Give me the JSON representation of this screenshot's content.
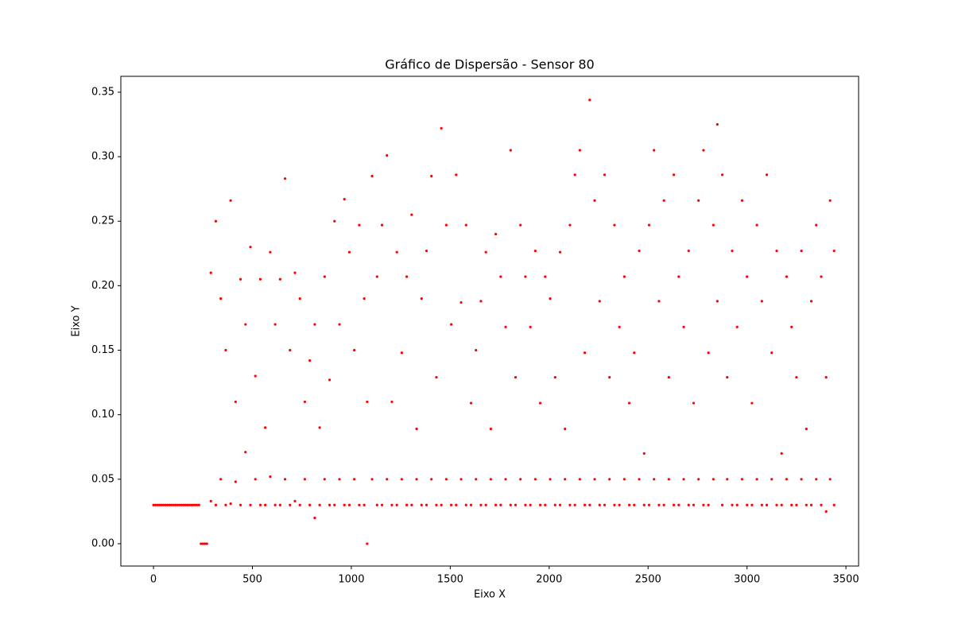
{
  "chart_data": {
    "type": "scatter",
    "title": "Gráfico de Dispersão - Sensor 80",
    "xlabel": "Eixo X",
    "ylabel": "Eixo Y",
    "color": "#ff0000",
    "grid": false,
    "xlim": [
      -165,
      3564
    ],
    "ylim": [
      -0.0173,
      0.3623
    ],
    "xticks": [
      0,
      500,
      1000,
      1500,
      2000,
      2500,
      3000,
      3500
    ],
    "yticks": [
      {
        "value": 0,
        "label": "0.00"
      },
      0.05,
      {
        "value": 0.1,
        "label": "0.10"
      },
      0.15,
      {
        "value": 0.2,
        "label": "0.20"
      },
      0.25,
      {
        "value": 0.3,
        "label": "0.30"
      },
      0.35
    ],
    "x": [
      0,
      10,
      20,
      30,
      40,
      50,
      60,
      70,
      80,
      90,
      100,
      110,
      120,
      130,
      140,
      150,
      160,
      170,
      180,
      190,
      200,
      210,
      220,
      230,
      240,
      250,
      260,
      270,
      290,
      290,
      315,
      315,
      340,
      340,
      365,
      365,
      390,
      390,
      415,
      415,
      440,
      440,
      465,
      465,
      490,
      490,
      515,
      515,
      540,
      540,
      565,
      565,
      590,
      590,
      615,
      615,
      640,
      640,
      665,
      665,
      690,
      690,
      715,
      715,
      740,
      740,
      765,
      765,
      790,
      790,
      815,
      815,
      840,
      840,
      865,
      865,
      890,
      890,
      915,
      915,
      940,
      940,
      965,
      965,
      990,
      990,
      1015,
      1015,
      1040,
      1040,
      1065,
      1065,
      1080,
      1080,
      1105,
      1105,
      1130,
      1130,
      1155,
      1155,
      1180,
      1180,
      1205,
      1205,
      1230,
      1230,
      1255,
      1255,
      1280,
      1280,
      1305,
      1305,
      1330,
      1330,
      1355,
      1355,
      1380,
      1380,
      1405,
      1405,
      1430,
      1430,
      1455,
      1455,
      1480,
      1480,
      1505,
      1505,
      1530,
      1530,
      1555,
      1555,
      1580,
      1580,
      1605,
      1605,
      1630,
      1630,
      1655,
      1655,
      1680,
      1680,
      1705,
      1705,
      1730,
      1730,
      1755,
      1755,
      1780,
      1780,
      1805,
      1805,
      1830,
      1830,
      1855,
      1855,
      1880,
      1880,
      1905,
      1905,
      1930,
      1930,
      1955,
      1955,
      1980,
      1980,
      2005,
      2005,
      2030,
      2030,
      2055,
      2055,
      2080,
      2080,
      2105,
      2105,
      2130,
      2130,
      2155,
      2155,
      2180,
      2180,
      2205,
      2205,
      2230,
      2230,
      2255,
      2255,
      2280,
      2280,
      2305,
      2305,
      2330,
      2330,
      2355,
      2355,
      2380,
      2380,
      2405,
      2405,
      2430,
      2430,
      2455,
      2455,
      2480,
      2480,
      2505,
      2505,
      2530,
      2530,
      2555,
      2555,
      2580,
      2580,
      2605,
      2605,
      2630,
      2630,
      2655,
      2655,
      2680,
      2680,
      2705,
      2705,
      2730,
      2730,
      2755,
      2755,
      2780,
      2780,
      2805,
      2805,
      2830,
      2830,
      2850,
      2850,
      2875,
      2875,
      2900,
      2900,
      2925,
      2925,
      2950,
      2950,
      2975,
      2975,
      3000,
      3000,
      3025,
      3025,
      3050,
      3050,
      3075,
      3075,
      3100,
      3100,
      3125,
      3125,
      3150,
      3150,
      3175,
      3175,
      3200,
      3200,
      3225,
      3225,
      3250,
      3250,
      3275,
      3275,
      3300,
      3300,
      3325,
      3325,
      3350,
      3350,
      3375,
      3375,
      3400,
      3400,
      3420,
      3420,
      3440,
      3440
    ],
    "values": [
      0.03,
      0.03,
      0.03,
      0.03,
      0.03,
      0.03,
      0.03,
      0.03,
      0.03,
      0.03,
      0.03,
      0.03,
      0.03,
      0.03,
      0.03,
      0.03,
      0.03,
      0.03,
      0.03,
      0.03,
      0.03,
      0.03,
      0.03,
      0.03,
      0,
      0,
      0,
      0,
      0.033,
      0.21,
      0.03,
      0.25,
      0.05,
      0.19,
      0.03,
      0.15,
      0.031,
      0.266,
      0.048,
      0.11,
      0.03,
      0.205,
      0.071,
      0.17,
      0.03,
      0.23,
      0.05,
      0.13,
      0.03,
      0.205,
      0.03,
      0.09,
      0.052,
      0.226,
      0.03,
      0.17,
      0.03,
      0.205,
      0.05,
      0.283,
      0.03,
      0.15,
      0.033,
      0.21,
      0.03,
      0.19,
      0.05,
      0.11,
      0.03,
      0.142,
      0.02,
      0.17,
      0.03,
      0.09,
      0.05,
      0.207,
      0.03,
      0.127,
      0.03,
      0.25,
      0.05,
      0.17,
      0.03,
      0.267,
      0.03,
      0.226,
      0.05,
      0.15,
      0.03,
      0.247,
      0.03,
      0.19,
      0,
      0.11,
      0.05,
      0.285,
      0.03,
      0.207,
      0.03,
      0.247,
      0.05,
      0.301,
      0.03,
      0.11,
      0.03,
      0.226,
      0.05,
      0.148,
      0.03,
      0.207,
      0.03,
      0.255,
      0.05,
      0.089,
      0.03,
      0.19,
      0.03,
      0.227,
      0.05,
      0.285,
      0.03,
      0.129,
      0.03,
      0.322,
      0.05,
      0.247,
      0.03,
      0.17,
      0.03,
      0.286,
      0.05,
      0.187,
      0.03,
      0.247,
      0.03,
      0.109,
      0.05,
      0.15,
      0.03,
      0.188,
      0.03,
      0.226,
      0.05,
      0.089,
      0.03,
      0.24,
      0.03,
      0.207,
      0.05,
      0.168,
      0.03,
      0.305,
      0.03,
      0.129,
      0.05,
      0.247,
      0.03,
      0.207,
      0.03,
      0.168,
      0.05,
      0.227,
      0.03,
      0.109,
      0.03,
      0.207,
      0.05,
      0.19,
      0.03,
      0.129,
      0.03,
      0.226,
      0.05,
      0.089,
      0.03,
      0.247,
      0.03,
      0.286,
      0.05,
      0.305,
      0.03,
      0.148,
      0.03,
      0.344,
      0.05,
      0.266,
      0.03,
      0.188,
      0.03,
      0.286,
      0.05,
      0.129,
      0.03,
      0.247,
      0.03,
      0.168,
      0.05,
      0.207,
      0.03,
      0.109,
      0.03,
      0.148,
      0.05,
      0.227,
      0.03,
      0.07,
      0.03,
      0.247,
      0.05,
      0.305,
      0.03,
      0.188,
      0.03,
      0.266,
      0.05,
      0.129,
      0.03,
      0.286,
      0.03,
      0.207,
      0.05,
      0.168,
      0.03,
      0.227,
      0.03,
      0.109,
      0.05,
      0.266,
      0.03,
      0.305,
      0.03,
      0.148,
      0.05,
      0.247,
      0.325,
      0.188,
      0.03,
      0.286,
      0.05,
      0.129,
      0.03,
      0.227,
      0.03,
      0.168,
      0.05,
      0.266,
      0.03,
      0.207,
      0.03,
      0.109,
      0.05,
      0.247,
      0.03,
      0.188,
      0.03,
      0.286,
      0.05,
      0.148,
      0.03,
      0.227,
      0.03,
      0.07,
      0.05,
      0.207,
      0.03,
      0.168,
      0.03,
      0.129,
      0.05,
      0.227,
      0.03,
      0.089,
      0.03,
      0.188,
      0.05,
      0.247,
      0.03,
      0.207,
      0.025,
      0.129,
      0.05,
      0.266,
      0.03,
      0.227
    ]
  }
}
